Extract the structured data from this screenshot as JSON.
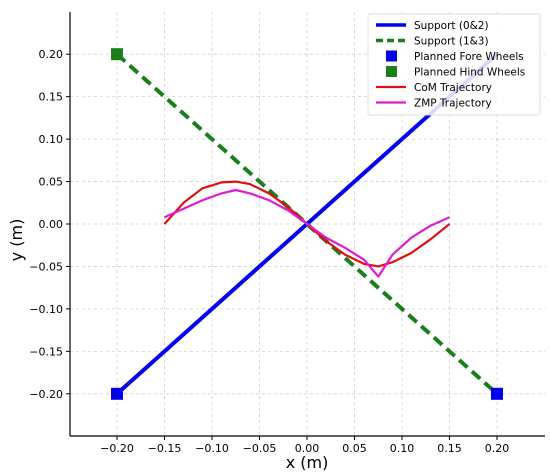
{
  "chart_data": {
    "type": "line",
    "xlabel": "x (m)",
    "ylabel": "y (m)",
    "xlim": [
      -0.25,
      0.25
    ],
    "ylim": [
      -0.25,
      0.25
    ],
    "xticks": [
      -0.2,
      -0.15,
      -0.1,
      -0.05,
      0.0,
      0.05,
      0.1,
      0.15,
      0.2
    ],
    "xtick_labels": [
      "−0.20",
      "−0.15",
      "−0.10",
      "−0.05",
      "0.00",
      "0.05",
      "0.10",
      "0.15",
      "0.20"
    ],
    "yticks": [
      0.2,
      0.15,
      0.1,
      0.05,
      0.0,
      -0.05,
      -0.1,
      -0.15,
      -0.2
    ],
    "ytick_labels": [
      "0.20",
      "0.15",
      "0.10",
      "0.05",
      "0.00",
      "−0.05",
      "−0.10",
      "−0.15",
      "−0.20"
    ],
    "grid": true,
    "legend_position": "top-right",
    "series": [
      {
        "name": "Support (0&2)",
        "kind": "line",
        "color": "#0000ee",
        "dash": "solid",
        "x": [
          -0.2,
          0.2
        ],
        "y": [
          -0.2,
          0.2
        ]
      },
      {
        "name": "Support (1&3)",
        "kind": "line",
        "color": "#1a7f1a",
        "dash": "dashed",
        "x": [
          -0.2,
          0.2
        ],
        "y": [
          0.2,
          -0.2
        ]
      },
      {
        "name": "Planned Fore Wheels",
        "kind": "marker",
        "color": "#0000ee",
        "x": [
          -0.2,
          0.2
        ],
        "y": [
          -0.2,
          -0.2
        ]
      },
      {
        "name": "Planned Hind Wheels",
        "kind": "marker",
        "color": "#1a7f1a",
        "x": [
          -0.2
        ],
        "y": [
          0.2
        ]
      },
      {
        "name": "CoM Trajectory",
        "kind": "line",
        "color": "#dd1111",
        "dash": "solid",
        "x": [
          -0.15,
          -0.13,
          -0.11,
          -0.09,
          -0.075,
          -0.06,
          -0.04,
          -0.02,
          0.0,
          0.02,
          0.04,
          0.06,
          0.075,
          0.09,
          0.11,
          0.13,
          0.15
        ],
        "y": [
          0.0,
          0.025,
          0.042,
          0.049,
          0.05,
          0.047,
          0.036,
          0.02,
          0.0,
          -0.02,
          -0.036,
          -0.047,
          -0.05,
          -0.045,
          -0.034,
          -0.018,
          0.0
        ]
      },
      {
        "name": "ZMP Trajectory",
        "kind": "line",
        "color": "#e01ad6",
        "dash": "solid",
        "x": [
          -0.15,
          -0.13,
          -0.11,
          -0.09,
          -0.075,
          -0.06,
          -0.04,
          -0.02,
          0.0,
          0.02,
          0.04,
          0.06,
          0.075,
          0.09,
          0.11,
          0.13,
          0.15
        ],
        "y": [
          0.008,
          0.018,
          0.028,
          0.036,
          0.04,
          0.036,
          0.028,
          0.016,
          0.0,
          -0.016,
          -0.028,
          -0.042,
          -0.062,
          -0.036,
          -0.016,
          -0.002,
          0.008
        ]
      }
    ]
  }
}
